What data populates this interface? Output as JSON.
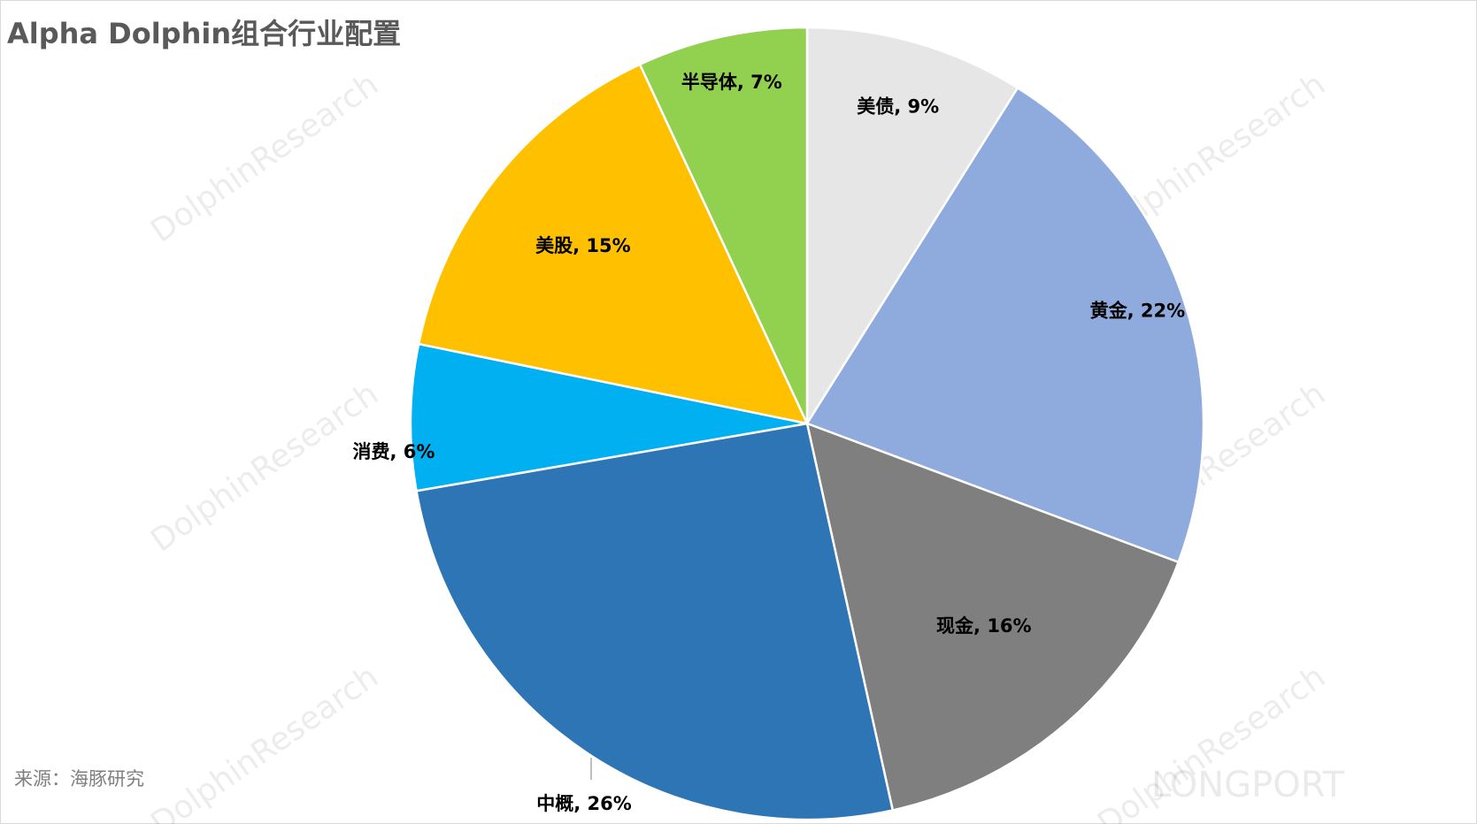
{
  "chart_data": {
    "type": "pie",
    "title": "Alpha Dolphin组合行业配置",
    "values": [
      9,
      22,
      16,
      26,
      6,
      15,
      7
    ],
    "value_labels": [
      "美债, 9%",
      "黄金, 22%",
      "现金, 16%",
      "中概, 26%",
      "消费, 6%",
      "美股, 15%",
      "半导体, 7%"
    ],
    "colors": [
      "#e7e6e6",
      "#8faadc",
      "#7f7f7f",
      "#2e75b6",
      "#00b0f0",
      "#ffc000",
      "#92d050"
    ],
    "source": "来源：海豚研究",
    "watermark": "DolphinResearch",
    "logo": "LONGPORT"
  }
}
